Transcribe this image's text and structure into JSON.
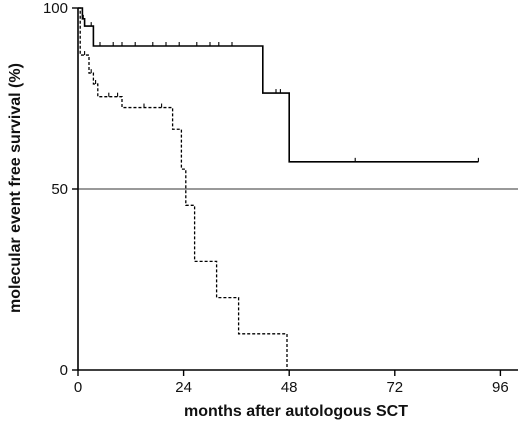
{
  "chart_data": {
    "type": "line",
    "subtype": "kaplan-meier step",
    "title": "",
    "xlabel": "months after autologous SCT",
    "ylabel": "molecular event free survival (%)",
    "xlim": [
      0,
      100
    ],
    "ylim": [
      0,
      100
    ],
    "x_ticks": [
      "0",
      "24",
      "48",
      "72",
      "96"
    ],
    "x_tick_values": [
      0,
      24,
      48,
      72,
      96
    ],
    "y_ticks": [
      "0",
      "50",
      "100"
    ],
    "y_tick_values": [
      0,
      50,
      100
    ],
    "reference_line": {
      "y": 50
    },
    "grid": false,
    "legend": "none",
    "series": [
      {
        "style": "solid",
        "steps": [
          [
            0,
            100
          ],
          [
            1,
            97
          ],
          [
            1.5,
            95
          ],
          [
            3.5,
            89.5
          ],
          [
            42,
            89.5
          ],
          [
            42,
            76.5
          ],
          [
            48,
            76.5
          ],
          [
            48,
            57.5
          ],
          [
            91,
            57.5
          ]
        ],
        "censored": [
          [
            1.2,
            97
          ],
          [
            3,
            95
          ],
          [
            5,
            89.5
          ],
          [
            8,
            89.5
          ],
          [
            10,
            89.5
          ],
          [
            13,
            89.5
          ],
          [
            17,
            89.5
          ],
          [
            20,
            89.5
          ],
          [
            23,
            89.5
          ],
          [
            27,
            89.5
          ],
          [
            30,
            89.5
          ],
          [
            32,
            89.5
          ],
          [
            35,
            89.5
          ],
          [
            45,
            76.5
          ],
          [
            46,
            76.5
          ],
          [
            63,
            57.5
          ],
          [
            91,
            57.5
          ]
        ]
      },
      {
        "style": "dashed",
        "steps": [
          [
            0,
            100
          ],
          [
            0.5,
            87
          ],
          [
            2.5,
            82
          ],
          [
            3.5,
            79
          ],
          [
            4.5,
            75.5
          ],
          [
            10,
            75.5
          ],
          [
            10,
            72.5
          ],
          [
            21.5,
            72.5
          ],
          [
            21.5,
            66.5
          ],
          [
            23.5,
            66.5
          ],
          [
            23.5,
            55.5
          ],
          [
            24.5,
            55.5
          ],
          [
            24.5,
            45.5
          ],
          [
            26.5,
            45.5
          ],
          [
            26.5,
            30
          ],
          [
            31.5,
            30
          ],
          [
            31.5,
            20
          ],
          [
            36.5,
            20
          ],
          [
            36.5,
            10
          ],
          [
            47.5,
            10
          ],
          [
            47.5,
            0
          ]
        ],
        "censored": [
          [
            1.5,
            87
          ],
          [
            3,
            82
          ],
          [
            4,
            79
          ],
          [
            7,
            75.5
          ],
          [
            9,
            75.5
          ],
          [
            15,
            72.5
          ],
          [
            19,
            72.5
          ]
        ]
      }
    ]
  }
}
